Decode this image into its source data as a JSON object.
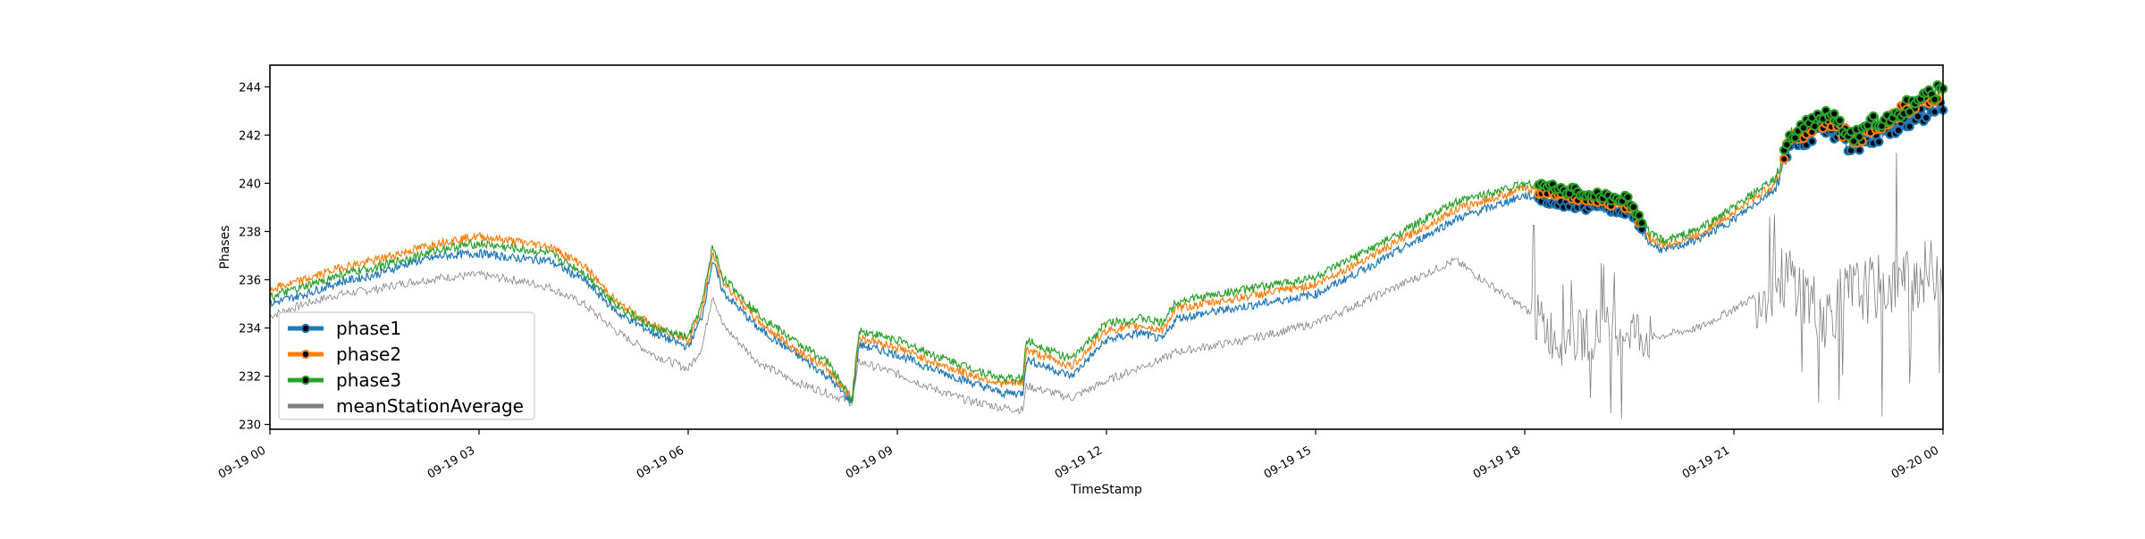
{
  "chart_data": {
    "type": "line",
    "title": "",
    "xlabel": "TimeStamp",
    "ylabel": "Phases",
    "x_range": [
      "09-19 00",
      "09-20 00"
    ],
    "ylim": [
      229.8,
      244.9
    ],
    "grid": false,
    "legend_position": "lower-left",
    "x_ticks": [
      "09-19 00",
      "09-19 03",
      "09-19 06",
      "09-19 09",
      "09-19 12",
      "09-19 15",
      "09-19 18",
      "09-19 21",
      "09-20 00"
    ],
    "y_ticks": [
      230,
      232,
      234,
      236,
      238,
      240,
      242,
      244
    ],
    "series": [
      {
        "name": "phase1",
        "color": "#1f77b4",
        "x_hours": [
          0,
          0.5,
          1,
          1.5,
          2,
          2.5,
          3,
          3.5,
          4,
          4.5,
          5,
          5.5,
          6,
          6.2,
          6.35,
          6.5,
          7,
          7.5,
          8,
          8.35,
          8.45,
          9,
          9.5,
          10,
          10.5,
          10.8,
          10.85,
          11.5,
          12,
          12.5,
          12.8,
          13,
          14,
          15,
          16,
          17,
          18,
          18.5,
          19,
          19.5,
          19.8,
          20,
          20.5,
          21,
          21.6,
          21.8,
          22,
          22.3,
          22.5,
          22.7,
          23,
          23.5,
          24
        ],
        "values": [
          235.0,
          235.4,
          235.9,
          236.2,
          236.7,
          237.0,
          237.1,
          236.9,
          236.8,
          236.0,
          234.6,
          233.8,
          233.2,
          234.5,
          236.8,
          235.5,
          234.0,
          233.0,
          232.0,
          230.9,
          233.3,
          232.9,
          232.3,
          231.8,
          231.3,
          231.3,
          232.7,
          232.0,
          233.5,
          233.8,
          233.5,
          234.4,
          234.9,
          235.4,
          236.9,
          238.5,
          239.5,
          239.2,
          239.0,
          238.8,
          237.5,
          237.2,
          237.7,
          238.5,
          239.8,
          241.5,
          241.8,
          242.3,
          242.0,
          241.4,
          241.9,
          242.6,
          243.2
        ]
      },
      {
        "name": "phase2",
        "color": "#ff7f0e",
        "x_hours": [
          0,
          0.5,
          1,
          1.5,
          2,
          2.5,
          3,
          3.5,
          4,
          4.5,
          5,
          5.5,
          6,
          6.2,
          6.35,
          6.5,
          7,
          7.5,
          8,
          8.35,
          8.45,
          9,
          9.5,
          10,
          10.5,
          10.8,
          10.85,
          11.5,
          12,
          12.5,
          12.8,
          13,
          14,
          15,
          16,
          17,
          18,
          18.5,
          19,
          19.5,
          19.8,
          20,
          20.5,
          21,
          21.6,
          21.8,
          22,
          22.3,
          22.5,
          22.7,
          23,
          23.5,
          24
        ],
        "values": [
          235.6,
          236.0,
          236.5,
          236.8,
          237.2,
          237.6,
          237.8,
          237.6,
          237.4,
          236.6,
          235.0,
          234.1,
          233.5,
          234.8,
          237.1,
          235.9,
          234.3,
          233.2,
          232.3,
          231.1,
          233.6,
          233.2,
          232.6,
          232.1,
          231.7,
          231.7,
          233.1,
          232.4,
          233.9,
          234.1,
          233.9,
          234.8,
          235.3,
          235.8,
          237.3,
          238.9,
          239.8,
          239.6,
          239.3,
          239.1,
          237.7,
          237.4,
          237.9,
          238.8,
          240.0,
          241.8,
          242.1,
          242.6,
          242.4,
          241.7,
          242.3,
          243.1,
          243.8
        ]
      },
      {
        "name": "phase3",
        "color": "#2ca02c",
        "x_hours": [
          0,
          0.5,
          1,
          1.5,
          2,
          2.5,
          3,
          3.5,
          4,
          4.5,
          5,
          5.5,
          6,
          6.2,
          6.35,
          6.5,
          7,
          7.5,
          8,
          8.35,
          8.45,
          9,
          9.5,
          10,
          10.5,
          10.8,
          10.85,
          11.5,
          12,
          12.5,
          12.8,
          13,
          14,
          15,
          16,
          17,
          18,
          18.5,
          19,
          19.5,
          19.8,
          20,
          20.5,
          21,
          21.6,
          21.8,
          22,
          22.3,
          22.5,
          22.7,
          23,
          23.5,
          24
        ],
        "values": [
          235.3,
          235.7,
          236.2,
          236.5,
          236.9,
          237.3,
          237.5,
          237.3,
          237.1,
          236.3,
          234.9,
          234.0,
          233.6,
          235.0,
          237.4,
          236.1,
          234.6,
          233.5,
          232.6,
          231.0,
          233.9,
          233.5,
          232.9,
          232.4,
          231.9,
          231.9,
          233.5,
          232.7,
          234.2,
          234.4,
          234.2,
          235.1,
          235.6,
          236.1,
          237.6,
          239.2,
          240.0,
          239.8,
          239.5,
          239.3,
          237.9,
          237.6,
          238.1,
          239.0,
          240.2,
          242.0,
          242.3,
          242.8,
          242.6,
          241.9,
          242.5,
          243.2,
          243.9
        ]
      },
      {
        "name": "meanStationAverage",
        "color": "#808080",
        "x_hours": [
          0,
          0.5,
          1,
          1.5,
          2,
          2.5,
          3,
          3.5,
          4,
          4.5,
          5,
          5.5,
          6,
          6.2,
          6.35,
          6.5,
          7,
          7.5,
          8,
          8.35,
          8.45,
          9,
          9.5,
          10,
          10.5,
          10.8,
          10.85,
          11.5,
          12,
          12.5,
          12.8,
          13,
          14,
          15,
          16,
          17,
          18,
          18.5,
          19,
          19.5,
          19.8,
          20,
          20.5,
          21,
          21.6,
          21.8,
          22,
          22.3,
          22.5,
          22.7,
          23,
          23.5,
          24
        ],
        "values": [
          234.5,
          235.0,
          235.4,
          235.6,
          235.9,
          236.1,
          236.2,
          236.0,
          235.7,
          235.0,
          233.8,
          232.9,
          232.3,
          233.2,
          235.4,
          234.1,
          232.6,
          231.8,
          231.3,
          230.9,
          232.6,
          232.1,
          231.5,
          231.0,
          230.7,
          230.6,
          231.6,
          231.1,
          231.8,
          232.4,
          232.7,
          233.0,
          233.5,
          234.2,
          235.5,
          236.8,
          234.8,
          233.5,
          233.8,
          234.0,
          233.6,
          233.7,
          234.0,
          234.8,
          235.8,
          236.2,
          235.5,
          234.5,
          235.0,
          235.5,
          235.6,
          236.0,
          236.5
        ]
      }
    ],
    "highlight_markers": {
      "applies_to": [
        "phase1",
        "phase2",
        "phase3"
      ],
      "marker_face": "#000000",
      "ranges_hours": [
        [
          18.2,
          19.7
        ],
        [
          21.7,
          24
        ]
      ]
    }
  }
}
